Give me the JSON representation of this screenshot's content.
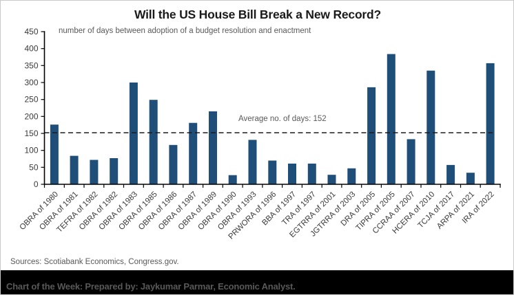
{
  "chart_data": {
    "type": "bar",
    "title": "Will the US House Bill Break a New Record?",
    "subtitle": "number of days between adoption of a budget resolution and enactment",
    "categories": [
      "OBRA of 1980",
      "OBRA of 1981",
      "TEFRA of 1982",
      "OBRA of 1982",
      "OBRA of 1983",
      "OBRA of 1985",
      "OBRA of 1986",
      "OBRA of 1987",
      "OBRA of 1989",
      "OBRA of 1990",
      "OBRA of 1993",
      "PRWORA of 1996",
      "BBA of 1997",
      "TRA of 1997",
      "EGTRRA of 2001",
      "JGTRRA of 2003",
      "DRA of 2005",
      "TIPRA of 2005",
      "CCRAA of 2007",
      "HCERA of 2010",
      "TCJA of 2017",
      "ARPA of 2021",
      "IRA of 2022"
    ],
    "values": [
      176,
      84,
      72,
      77,
      300,
      249,
      116,
      181,
      215,
      27,
      131,
      70,
      61,
      61,
      28,
      47,
      286,
      384,
      133,
      335,
      57,
      34,
      357
    ],
    "ylabel": "",
    "xlabel": "",
    "ylim": [
      0,
      450
    ],
    "ytick_step": 50,
    "grid": false,
    "legend": null,
    "average_line": {
      "value": 152,
      "label": "Average no. of days: 152"
    },
    "colors": {
      "bar": "#1F4E79",
      "axis": "#000000",
      "tick_label": "#3a3a3a",
      "annotation": "#595959"
    }
  },
  "sources": {
    "text": "Sources: Scotiabank Economics, Congress.gov."
  },
  "footer": {
    "text": "Chart of the Week: Prepared by: Jaykumar Parmar, Economic Analyst.",
    "bar_color": "#000000",
    "text_color": "#595959"
  }
}
